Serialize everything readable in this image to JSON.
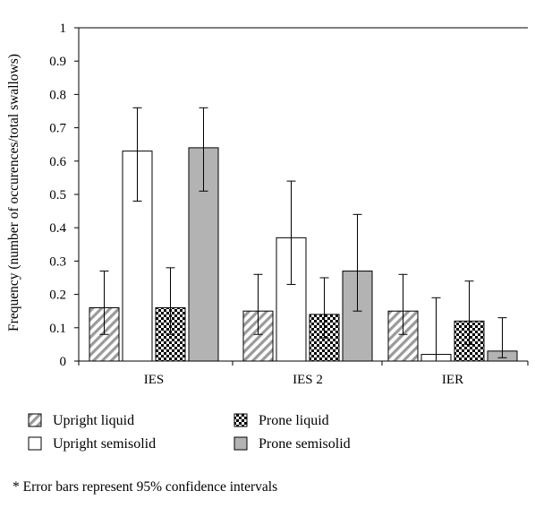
{
  "chart_data": {
    "type": "bar",
    "ylabel": "Frequency (number of occurences/total swallows)",
    "ylim": [
      0,
      1
    ],
    "yticks": [
      0,
      0.1,
      0.2,
      0.3,
      0.4,
      0.5,
      0.6,
      0.7,
      0.8,
      0.9,
      1
    ],
    "ytick_labels": [
      "0",
      "0.1",
      "0.2",
      "0.3",
      "0.4",
      "0.5",
      "0.6",
      "0.7",
      "0.8",
      "0.9",
      "1"
    ],
    "categories": [
      "IES",
      "IES 2",
      "IER"
    ],
    "grid": false,
    "legend_position": "bottom",
    "series": [
      {
        "name": "Upright liquid",
        "fill": "hatched",
        "color": "#9a9a9a",
        "values": [
          0.16,
          0.15,
          0.15
        ],
        "error_low": [
          0.08,
          0.08,
          0.08
        ],
        "error_high": [
          0.27,
          0.26,
          0.26
        ]
      },
      {
        "name": "Upright semisolid",
        "fill": "white",
        "color": "#ffffff",
        "values": [
          0.63,
          0.37,
          0.02
        ],
        "error_low": [
          0.48,
          0.23,
          0.0
        ],
        "error_high": [
          0.76,
          0.54,
          0.19
        ]
      },
      {
        "name": "Prone liquid",
        "fill": "dotted",
        "color": "#000000",
        "values": [
          0.16,
          0.14,
          0.12
        ],
        "error_low": [
          0.08,
          0.07,
          0.05
        ],
        "error_high": [
          0.28,
          0.25,
          0.24
        ]
      },
      {
        "name": "Prone semisolid",
        "fill": "gray",
        "color": "#b3b3b3",
        "values": [
          0.64,
          0.27,
          0.03
        ],
        "error_low": [
          0.51,
          0.15,
          0.01
        ],
        "error_high": [
          0.76,
          0.44,
          0.13
        ]
      }
    ],
    "footnote": "* Error bars represent 95% confidence intervals"
  }
}
